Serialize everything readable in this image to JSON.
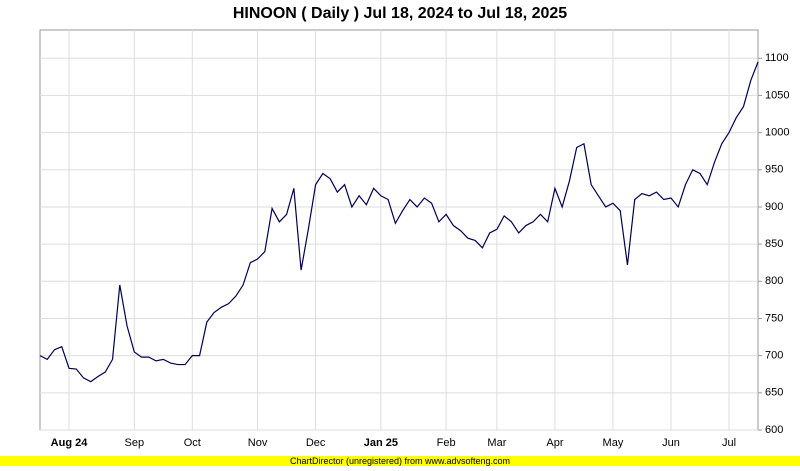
{
  "chart_data": {
    "type": "line",
    "title": "HINOON ( Daily ) Jul 18, 2024 to Jul 18, 2025",
    "footer": "ChartDirector (unregistered) from www.advsofteng.com",
    "categories": [
      null,
      null,
      null,
      null,
      "Aug 24",
      null,
      null,
      null,
      null,
      null,
      null,
      null,
      null,
      "Sep",
      null,
      null,
      null,
      null,
      null,
      null,
      null,
      "Oct",
      null,
      null,
      null,
      null,
      null,
      null,
      null,
      null,
      "Nov",
      null,
      null,
      null,
      null,
      null,
      null,
      null,
      "Dec",
      null,
      null,
      null,
      null,
      null,
      null,
      null,
      null,
      "Jan 25",
      null,
      null,
      null,
      null,
      null,
      null,
      null,
      null,
      "Feb",
      null,
      null,
      null,
      null,
      null,
      null,
      "Mar",
      null,
      null,
      null,
      null,
      null,
      null,
      null,
      "Apr",
      null,
      null,
      null,
      null,
      null,
      null,
      null,
      "May",
      null,
      null,
      null,
      null,
      null,
      null,
      null,
      "Jun",
      null,
      null,
      null,
      null,
      null,
      null,
      null,
      "Jul",
      null,
      null,
      null,
      null
    ],
    "series": [
      {
        "name": "HINOON",
        "color": "#000050",
        "values": [
          700,
          695,
          708,
          712,
          683,
          682,
          670,
          665,
          672,
          678,
          695,
          795,
          740,
          705,
          698,
          698,
          693,
          695,
          690,
          688,
          688,
          700,
          700,
          745,
          758,
          765,
          770,
          780,
          795,
          825,
          830,
          840,
          898,
          880,
          890,
          925,
          815,
          870,
          930,
          945,
          938,
          920,
          930,
          900,
          915,
          903,
          925,
          915,
          910,
          878,
          895,
          910,
          900,
          912,
          905,
          880,
          890,
          875,
          868,
          858,
          855,
          845,
          865,
          870,
          888,
          880,
          865,
          875,
          880,
          890,
          880,
          925,
          900,
          935,
          980,
          985,
          930,
          915,
          900,
          905,
          895,
          822,
          910,
          918,
          915,
          920,
          910,
          912,
          900,
          930,
          950,
          945,
          930,
          960,
          985,
          1000,
          1020,
          1035,
          1070,
          1095
        ]
      }
    ],
    "ylim": [
      600,
      1138
    ],
    "yticks": [
      600,
      650,
      700,
      750,
      800,
      850,
      900,
      950,
      1000,
      1050,
      1100
    ],
    "grid": true
  }
}
